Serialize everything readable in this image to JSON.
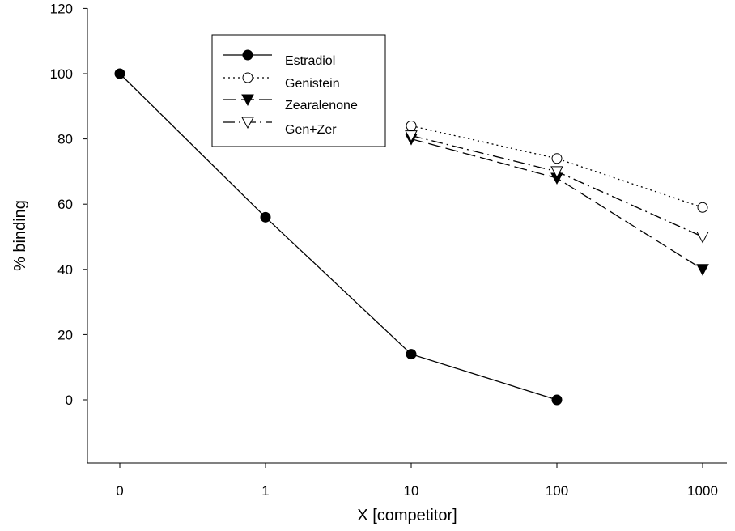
{
  "chart_data": {
    "type": "line",
    "xlabel": "X [competitor]",
    "ylabel": "% binding",
    "categories": [
      "0",
      "1",
      "10",
      "100",
      "1000"
    ],
    "yticks": [
      0,
      20,
      40,
      60,
      80,
      100,
      120
    ],
    "ylim": [
      -20,
      120
    ],
    "grid": false,
    "legend_position": "top-left",
    "series": [
      {
        "name": "Estradiol",
        "marker": "filled-circle",
        "line": "solid",
        "x": [
          "0",
          "1",
          "10",
          "100"
        ],
        "values": [
          100,
          56,
          14,
          0
        ]
      },
      {
        "name": "Genistein",
        "marker": "open-circle",
        "line": "dotted",
        "x": [
          "10",
          "100",
          "1000"
        ],
        "values": [
          84,
          74,
          59
        ]
      },
      {
        "name": "Zearalenone",
        "marker": "filled-triangle",
        "line": "dashed",
        "x": [
          "10",
          "100",
          "1000"
        ],
        "values": [
          80,
          68,
          40
        ]
      },
      {
        "name": "Gen+Zer",
        "marker": "open-triangle",
        "line": "dash-dot",
        "x": [
          "10",
          "100",
          "1000"
        ],
        "values": [
          81,
          70,
          50
        ]
      }
    ]
  }
}
